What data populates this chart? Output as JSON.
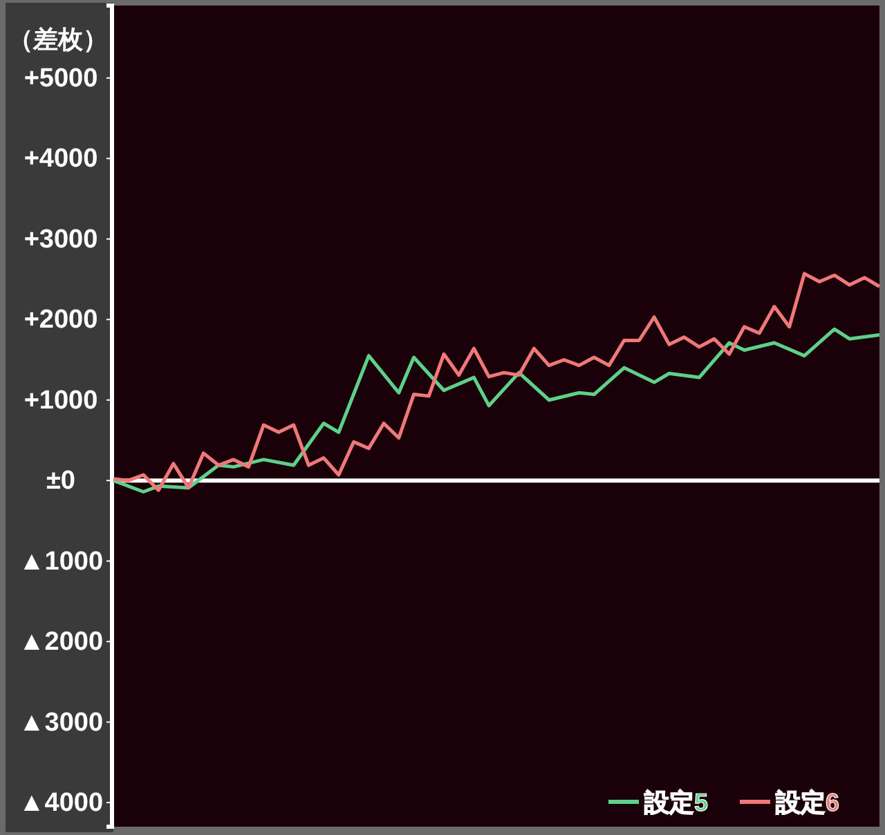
{
  "chart_data": {
    "type": "line",
    "ylabel": "（差枚）",
    "categories": [
      null,
      null,
      null,
      null,
      null,
      null,
      null,
      null,
      null,
      null,
      null,
      null,
      null,
      null,
      null,
      null,
      null,
      null,
      null,
      null,
      null,
      null,
      null,
      null,
      null,
      null,
      null,
      null,
      null,
      null,
      null,
      null,
      null,
      null,
      null,
      null,
      null,
      null,
      null,
      null,
      null,
      null,
      null,
      null,
      null,
      null,
      null,
      null,
      null,
      null,
      null,
      null
    ],
    "ylim": [
      -4300,
      5900
    ],
    "yticks": [
      {
        "value": 5000,
        "label": "+5000"
      },
      {
        "value": 4000,
        "label": "+4000"
      },
      {
        "value": 3000,
        "label": "+3000"
      },
      {
        "value": 2000,
        "label": "+2000"
      },
      {
        "value": 1000,
        "label": "+1000"
      },
      {
        "value": 0,
        "label": "±0"
      },
      {
        "value": -1000,
        "label": "▲1000"
      },
      {
        "value": -2000,
        "label": "▲2000"
      },
      {
        "value": -3000,
        "label": "▲3000"
      },
      {
        "value": -4000,
        "label": "▲4000"
      }
    ],
    "tick_labels": "y",
    "legend": "bottom right",
    "marker": "none",
    "line_style": "solid",
    "ref_lines": [
      {
        "axis": "y",
        "value": 0,
        "label": null,
        "color": "#ffffff"
      }
    ],
    "series": [
      {
        "name": "設定5",
        "color": "#5fd08a",
        "values": [
          0,
          null,
          -140,
          -70,
          null,
          -90,
          null,
          190,
          170,
          null,
          260,
          null,
          190,
          null,
          710,
          600,
          null,
          1550,
          null,
          1090,
          1530,
          null,
          1120,
          null,
          1280,
          930,
          null,
          1340,
          null,
          1000,
          null,
          1090,
          1070,
          null,
          1400,
          null,
          1220,
          1330,
          null,
          1280,
          null,
          1710,
          1620,
          null,
          1710,
          null,
          1550,
          null,
          1880,
          1760,
          null,
          1810
        ]
      },
      {
        "name": "設定6",
        "color": "#f07878",
        "values": [
          20,
          0,
          70,
          -120,
          210,
          -90,
          340,
          190,
          260,
          170,
          690,
          600,
          690,
          190,
          280,
          70,
          480,
          400,
          710,
          530,
          1070,
          1050,
          1570,
          1310,
          1640,
          1290,
          1340,
          1310,
          1640,
          1430,
          1500,
          1430,
          1530,
          1430,
          1740,
          1740,
          2030,
          1690,
          1780,
          1660,
          1760,
          1570,
          1910,
          1830,
          2160,
          1910,
          2570,
          2470,
          2550,
          2430,
          2520,
          2410
        ]
      }
    ]
  }
}
